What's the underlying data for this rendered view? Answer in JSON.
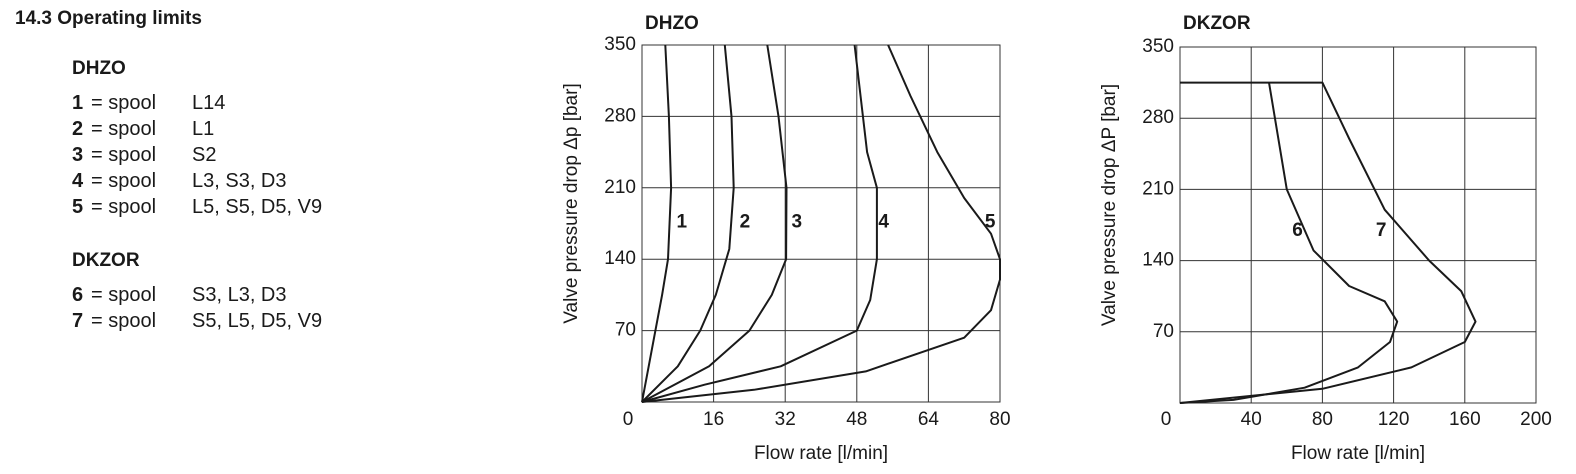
{
  "section_title": "14.3 Operating limits",
  "legend_groups": [
    {
      "title": "DHZO",
      "items": [
        {
          "key": "1",
          "text": "= spool",
          "spools": "L14"
        },
        {
          "key": "2",
          "text": "= spool",
          "spools": "L1"
        },
        {
          "key": "3",
          "text": "= spool",
          "spools": "S2"
        },
        {
          "key": "4",
          "text": "= spool",
          "spools": "L3, S3, D3"
        },
        {
          "key": "5",
          "text": "= spool",
          "spools": "L5, S5, D5, V9"
        }
      ]
    },
    {
      "title": "DKZOR",
      "items": [
        {
          "key": "6",
          "text": "= spool",
          "spools": "S3, L3, D3"
        },
        {
          "key": "7",
          "text": "= spool",
          "spools": "S5, L5, D5, V9"
        }
      ]
    }
  ],
  "chart_data": [
    {
      "type": "line",
      "title": "DHZO",
      "x_label": "Flow rate [l/min]",
      "y_label": "Valve pressure drop Δp [bar]",
      "xlim": [
        0,
        80
      ],
      "xticks": [
        0,
        16,
        32,
        48,
        64,
        80
      ],
      "ylim": [
        0,
        350
      ],
      "yticks": [
        70,
        140,
        210,
        280,
        350
      ],
      "grid": true,
      "series": [
        {
          "name": "1",
          "color": "#1a1a1a",
          "x": [
            0,
            1.5,
            3,
            4.5,
            5.8,
            6.5,
            6,
            5.2
          ],
          "values": [
            0,
            35,
            70,
            105,
            140,
            210,
            280,
            350
          ]
        },
        {
          "name": "2",
          "color": "#1a1a1a",
          "x": [
            0,
            8,
            13,
            16.5,
            19.5,
            20.5,
            20,
            18.5
          ],
          "values": [
            0,
            35,
            70,
            105,
            150,
            210,
            280,
            350
          ]
        },
        {
          "name": "3",
          "color": "#1a1a1a",
          "x": [
            0,
            15,
            24,
            29,
            32.2,
            32.3,
            30.5,
            28
          ],
          "values": [
            0,
            35,
            70,
            105,
            140,
            210,
            280,
            350
          ]
        },
        {
          "name": "4",
          "color": "#1a1a1a",
          "x": [
            0,
            14,
            31,
            48,
            51,
            52.5,
            52.5,
            50.3,
            47.5
          ],
          "values": [
            0,
            17,
            35,
            70,
            100,
            140,
            210,
            245,
            350
          ]
        },
        {
          "name": "5",
          "color": "#1a1a1a",
          "x": [
            0,
            25,
            50,
            72,
            78,
            80,
            80,
            78,
            72,
            66,
            60,
            55
          ],
          "values": [
            0,
            12,
            30,
            63,
            90,
            120,
            140,
            165,
            200,
            245,
            300,
            350
          ]
        }
      ]
    },
    {
      "type": "line",
      "title": "DKZOR",
      "x_label": "Flow rate [l/min]",
      "y_label": "Valve pressure drop ΔP [bar]",
      "xlim": [
        0,
        200
      ],
      "xticks": [
        0,
        40,
        80,
        120,
        160,
        200
      ],
      "ylim": [
        0,
        350
      ],
      "yticks": [
        70,
        140,
        210,
        280,
        350
      ],
      "grid": true,
      "series": [
        {
          "name": "6",
          "color": "#1a1a1a",
          "x": [
            0,
            30,
            70,
            100,
            118,
            122,
            115,
            95,
            75,
            60,
            50
          ],
          "values": [
            0,
            3,
            15,
            35,
            60,
            80,
            100,
            115,
            150,
            210,
            315
          ]
        },
        {
          "name": "7",
          "color": "#1a1a1a",
          "x": [
            0,
            80,
            130,
            160,
            166,
            158,
            140,
            115,
            95,
            80,
            0
          ],
          "values": [
            0,
            14,
            35,
            60,
            80,
            110,
            140,
            190,
            260,
            315,
            315
          ]
        }
      ]
    }
  ]
}
